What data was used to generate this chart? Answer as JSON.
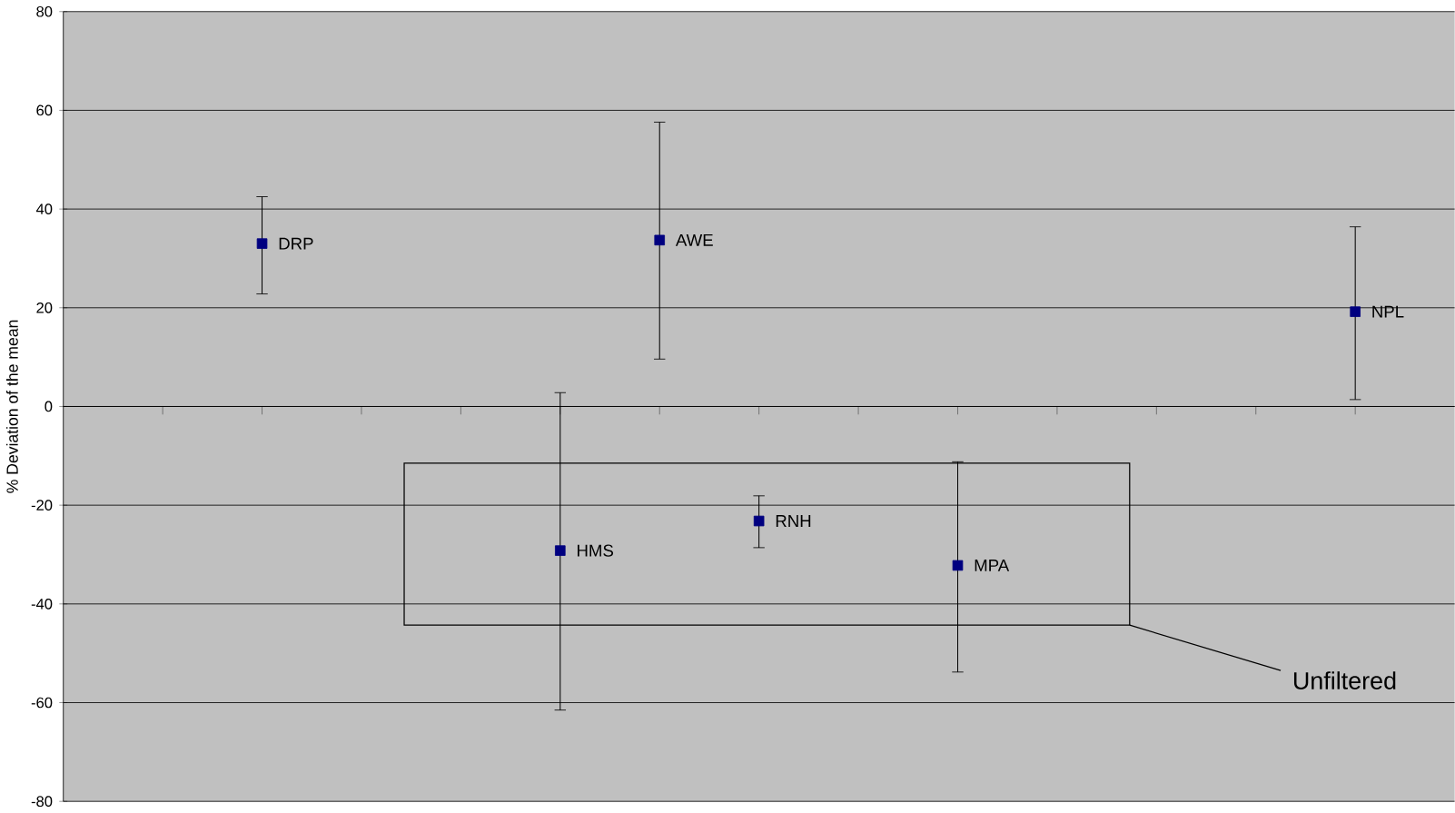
{
  "chart_data": {
    "type": "scatter",
    "ylabel": "% Deviation of the mean",
    "categories": [
      null,
      null,
      null,
      null,
      null,
      null,
      null,
      null,
      null,
      null,
      null,
      null,
      null
    ],
    "series": [
      {
        "name": "DRP",
        "color": "#000080",
        "values": [
          null,
          33.0,
          null,
          null,
          null,
          null,
          null,
          null,
          null,
          null,
          null,
          null,
          null
        ],
        "errors": [
          null,
          [
            22.8,
            42.5
          ],
          null,
          null,
          null,
          null,
          null,
          null,
          null,
          null,
          null,
          null,
          null
        ]
      },
      {
        "name": "HMS",
        "color": "#000080",
        "values": [
          null,
          null,
          null,
          null,
          -29.2,
          null,
          null,
          null,
          null,
          null,
          null,
          null,
          null
        ],
        "errors": [
          null,
          null,
          null,
          null,
          [
            -61.5,
            2.8
          ],
          null,
          null,
          null,
          null,
          null,
          null,
          null,
          null
        ]
      },
      {
        "name": "AWE",
        "color": "#000080",
        "values": [
          null,
          null,
          null,
          null,
          null,
          33.7,
          null,
          null,
          null,
          null,
          null,
          null,
          null
        ],
        "errors": [
          null,
          null,
          null,
          null,
          null,
          [
            9.6,
            57.6
          ],
          null,
          null,
          null,
          null,
          null,
          null,
          null
        ]
      },
      {
        "name": "RNH",
        "color": "#000080",
        "values": [
          null,
          null,
          null,
          null,
          null,
          null,
          -23.2,
          null,
          null,
          null,
          null,
          null,
          null
        ],
        "errors": [
          null,
          null,
          null,
          null,
          null,
          null,
          [
            -28.6,
            -18.1
          ],
          null,
          null,
          null,
          null,
          null,
          null
        ]
      },
      {
        "name": "MPA",
        "color": "#000080",
        "values": [
          null,
          null,
          null,
          null,
          null,
          null,
          null,
          null,
          -32.2,
          null,
          null,
          null,
          null
        ],
        "errors": [
          null,
          null,
          null,
          null,
          null,
          null,
          null,
          null,
          [
            -53.8,
            -11.2
          ],
          null,
          null,
          null,
          null
        ]
      },
      {
        "name": "NPL",
        "color": "#000080",
        "values": [
          null,
          null,
          null,
          null,
          null,
          null,
          null,
          null,
          null,
          null,
          null,
          null,
          19.2
        ],
        "errors": [
          null,
          null,
          null,
          null,
          null,
          null,
          null,
          null,
          null,
          null,
          null,
          null,
          [
            1.4,
            36.4
          ]
        ]
      }
    ],
    "annotations": [
      "Unfiltered"
    ],
    "ylim": [
      -80,
      80
    ],
    "yticks": [
      -80,
      -60,
      -40,
      -20,
      0,
      20,
      40,
      60,
      80
    ],
    "grid": "y",
    "marker": "square",
    "tick_labels": "y"
  }
}
